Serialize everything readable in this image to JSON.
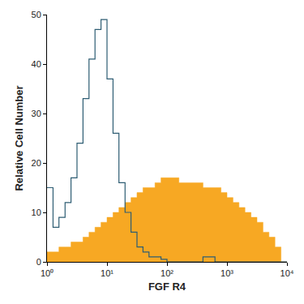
{
  "chart_data": {
    "type": "histogram",
    "x_label": "FGF R4",
    "y_label": "Relative Cell Number",
    "log": "x",
    "grid": false,
    "bins": [
      1,
      1.26,
      1.58,
      2,
      2.51,
      3.16,
      3.98,
      5.01,
      6.31,
      7.94,
      10,
      12.6,
      15.8,
      20,
      25.1,
      31.6,
      39.8,
      50.1,
      63.1,
      79.4,
      100,
      126,
      158,
      200,
      251,
      316,
      398,
      501,
      631,
      794,
      1000,
      1259,
      1585,
      1995,
      2512,
      3162,
      3981,
      5012,
      6310,
      7943,
      10000
    ],
    "series": [
      {
        "color": "#f7a823",
        "type": "area",
        "values": [
          2,
          2,
          3,
          3,
          4,
          4,
          5,
          6,
          7,
          8,
          9,
          10,
          11,
          12,
          13,
          14,
          15,
          15,
          16,
          17,
          17,
          17,
          16,
          16,
          16,
          16,
          15,
          15,
          15,
          14,
          13,
          12,
          11,
          10,
          9,
          8,
          6,
          5,
          3,
          0
        ]
      },
      {
        "color": "#2e5d73",
        "type": "line",
        "values": [
          15,
          7,
          9,
          12,
          17,
          24,
          33,
          41,
          47,
          49,
          37,
          26,
          16,
          10,
          6,
          3,
          2,
          1,
          1,
          0.5,
          0,
          0,
          0,
          0,
          0,
          0,
          1,
          1,
          0,
          0,
          0,
          0,
          0,
          0,
          0,
          0,
          0,
          0,
          0,
          0
        ]
      }
    ],
    "xlim": [
      1,
      10000
    ],
    "xticks": [
      {
        "value": 1,
        "label": "10⁰"
      },
      {
        "value": 10,
        "label": "10¹"
      },
      {
        "value": 100,
        "label": "10²"
      },
      {
        "value": 1000,
        "label": "10³"
      },
      {
        "value": 10000,
        "label": "10⁴"
      }
    ],
    "ylim": [
      0,
      50
    ],
    "yticks": [
      0,
      10,
      20,
      30,
      40,
      50
    ]
  }
}
